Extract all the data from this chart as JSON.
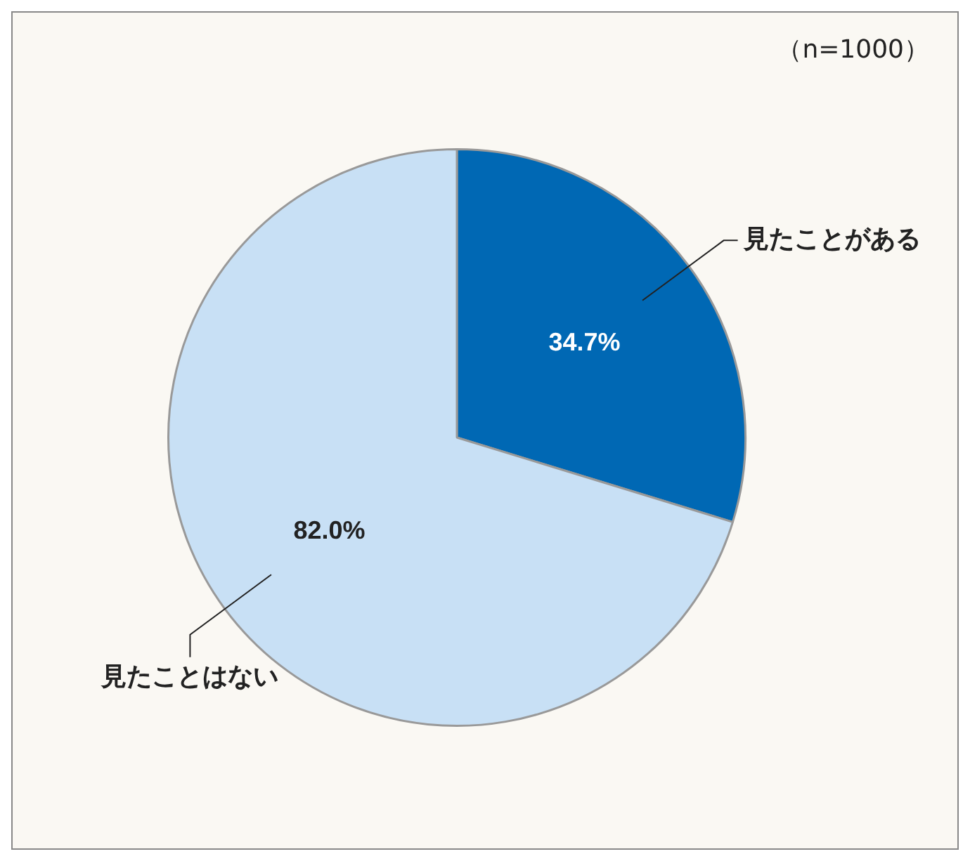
{
  "chart_data": {
    "type": "pie",
    "categories": [
      "見たことがある",
      "見たことはない"
    ],
    "values": [
      34.7,
      82.0
    ],
    "colors": [
      "#0068b4",
      "#c8e0f5"
    ],
    "value_labels": [
      "34.7%",
      "82.0%"
    ],
    "annotations": [
      "（n=1000）"
    ],
    "legend": false
  }
}
